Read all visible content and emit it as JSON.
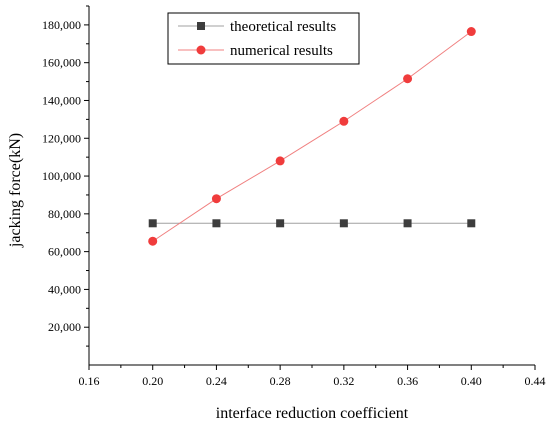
{
  "chart_data": {
    "type": "line",
    "xlabel": "interface reduction coefficient",
    "ylabel": "jacking force(kN)",
    "xlim": [
      0.16,
      0.44
    ],
    "ylim": [
      0,
      190000
    ],
    "x_ticks": [
      0.16,
      0.2,
      0.24,
      0.28,
      0.32,
      0.36,
      0.4,
      0.44
    ],
    "x_tick_labels": [
      "0.16",
      "0.20",
      "0.24",
      "0.28",
      "0.32",
      "0.36",
      "0.40",
      "0.44"
    ],
    "y_ticks": [
      20000,
      40000,
      60000,
      80000,
      100000,
      120000,
      140000,
      160000,
      180000
    ],
    "y_tick_labels": [
      "20,000",
      "40,000",
      "60,000",
      "80,000",
      "100,000",
      "120,000",
      "140,000",
      "160,000",
      "180,000"
    ],
    "x": [
      0.2,
      0.24,
      0.28,
      0.32,
      0.36,
      0.4
    ],
    "series": [
      {
        "name": "theoretical results",
        "marker": "square",
        "color": "#3d3d3d",
        "line_color": "#a0a0a0",
        "values": [
          75000,
          75000,
          75000,
          75000,
          75000,
          75000
        ]
      },
      {
        "name": "numerical results",
        "marker": "circle",
        "color": "#f03c3c",
        "line_color": "#f08080",
        "values": [
          65500,
          88000,
          108000,
          129000,
          151500,
          176500
        ]
      }
    ],
    "legend_position": "top-center",
    "grid": false
  }
}
